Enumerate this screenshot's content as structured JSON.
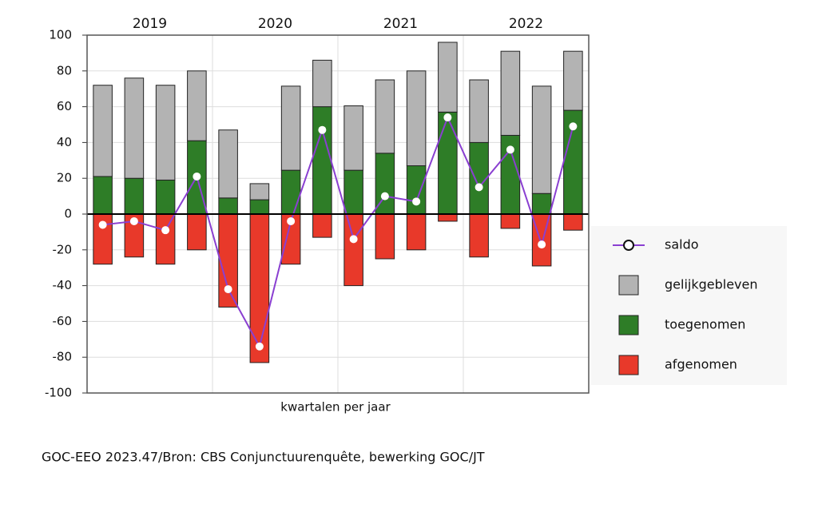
{
  "chart_data": {
    "type": "bar",
    "groups": [
      "2019",
      "2020",
      "2021",
      "2022"
    ],
    "categories": [
      null,
      null,
      null,
      null,
      null,
      null,
      null,
      null,
      null,
      null,
      null,
      null,
      null,
      null,
      null,
      null
    ],
    "x_label": "kwartalen per jaar",
    "source": "GOC-EEO 2023.47/Bron: CBS Conjunctuurenquête, bewerking GOC/JT",
    "series": [
      {
        "name": "saldo",
        "type": "line",
        "color": "#8a3fd1",
        "values": [
          -6,
          -4,
          -9,
          21,
          -42,
          -74,
          -4,
          47,
          -14,
          10,
          7,
          54,
          15,
          36,
          -17,
          49
        ]
      },
      {
        "name": "gelijkgebleven",
        "type": "bar",
        "color": "#b3b3b3",
        "values": [
          51,
          56,
          53,
          39,
          38,
          9,
          47,
          26,
          36,
          41,
          53,
          39,
          35,
          47,
          60,
          33
        ]
      },
      {
        "name": "toegenomen",
        "type": "bar",
        "color": "#2e7d27",
        "values": [
          21,
          20,
          19,
          41,
          9,
          8,
          24.5,
          60,
          24.5,
          34,
          27,
          57,
          40,
          44,
          11.5,
          58
        ]
      },
      {
        "name": "afgenomen",
        "type": "bar",
        "color": "#e8392a",
        "values": [
          -28,
          -24,
          -28,
          -20,
          -52,
          -83,
          -28,
          -13,
          -40,
          -25,
          -20,
          -4,
          -24,
          -8,
          -29,
          -9
        ]
      }
    ],
    "ylim": [
      -100,
      100
    ],
    "yticks": [
      -100,
      -80,
      -60,
      -40,
      -20,
      0,
      20,
      40,
      60,
      80,
      100
    ],
    "grid": true
  }
}
